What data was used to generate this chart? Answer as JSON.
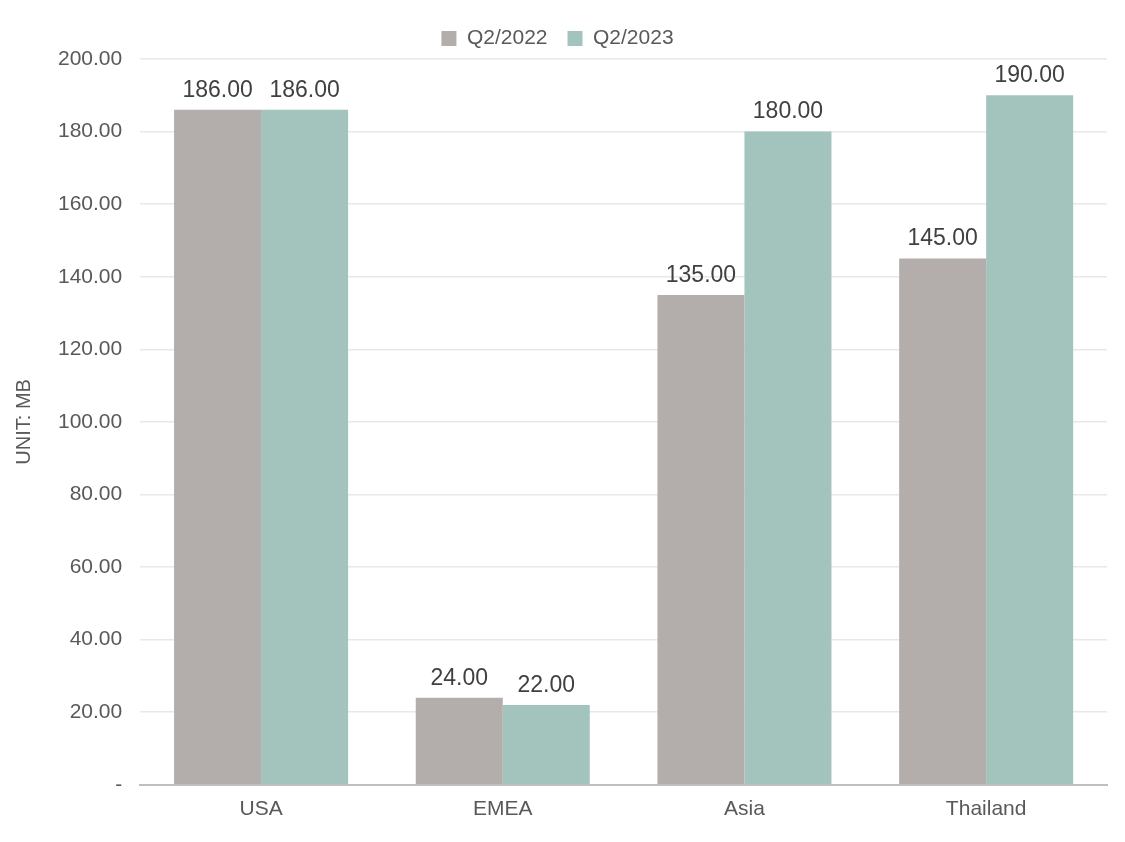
{
  "chart_data": {
    "type": "bar",
    "ylabel": "UNIT: MB",
    "categories": [
      "USA",
      "EMEA",
      "Asia",
      "Thailand"
    ],
    "series": [
      {
        "name": "Q2/2022",
        "color": "#b3adac",
        "values": [
          186,
          24,
          135,
          145
        ],
        "value_labels": [
          "186.00",
          "24.00",
          "135.00",
          "145.00"
        ]
      },
      {
        "name": "Q2/2023",
        "color": "#a3c4bc",
        "values": [
          186,
          22,
          180,
          190
        ],
        "value_labels": [
          "186.00",
          "22.00",
          "180.00",
          "190.00"
        ]
      }
    ],
    "ylim": [
      0,
      200
    ],
    "yticks": [
      {
        "value": 0,
        "label": "-"
      },
      {
        "value": 20,
        "label": "20.00"
      },
      {
        "value": 40,
        "label": "40.00"
      },
      {
        "value": 60,
        "label": "60.00"
      },
      {
        "value": 80,
        "label": "80.00"
      },
      {
        "value": 100,
        "label": "100.00"
      },
      {
        "value": 120,
        "label": "120.00"
      },
      {
        "value": 140,
        "label": "140.00"
      },
      {
        "value": 160,
        "label": "160.00"
      },
      {
        "value": 180,
        "label": "180.00"
      },
      {
        "value": 200,
        "label": "200.00"
      }
    ],
    "grid": "y",
    "legend": "top"
  }
}
